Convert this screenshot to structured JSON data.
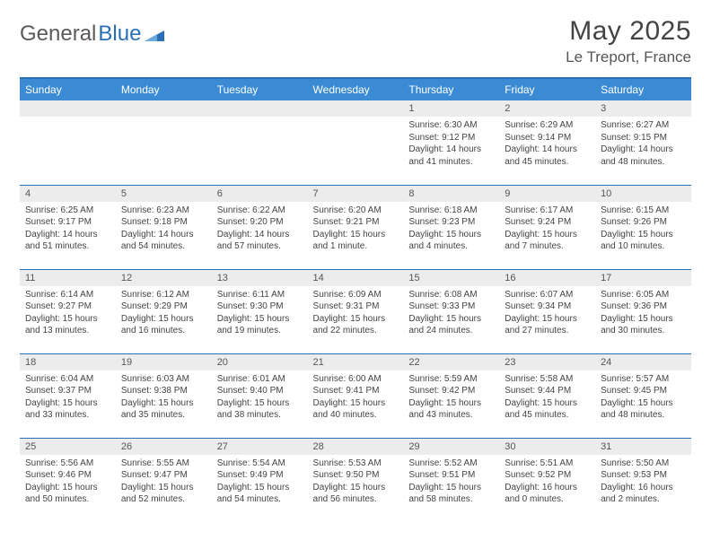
{
  "brand": {
    "word1": "General",
    "word2": "Blue"
  },
  "title": "May 2025",
  "location": "Le Treport, France",
  "colors": {
    "header_bg": "#3b8bd4",
    "header_text": "#ffffff",
    "border": "#2a6fb5",
    "daynum_bg": "#ececec",
    "body_text": "#444444",
    "logo_gray": "#5a5a5a",
    "logo_blue": "#2a6fb5",
    "page_bg": "#ffffff"
  },
  "typography": {
    "month_title_pt": 30,
    "location_pt": 17,
    "dow_pt": 12,
    "daynum_pt": 11,
    "body_pt": 10
  },
  "dow": [
    "Sunday",
    "Monday",
    "Tuesday",
    "Wednesday",
    "Thursday",
    "Friday",
    "Saturday"
  ],
  "weeks": [
    [
      null,
      null,
      null,
      null,
      {
        "n": "1",
        "sunrise": "6:30 AM",
        "sunset": "9:12 PM",
        "dl1": "Daylight: 14 hours",
        "dl2": "and 41 minutes."
      },
      {
        "n": "2",
        "sunrise": "6:29 AM",
        "sunset": "9:14 PM",
        "dl1": "Daylight: 14 hours",
        "dl2": "and 45 minutes."
      },
      {
        "n": "3",
        "sunrise": "6:27 AM",
        "sunset": "9:15 PM",
        "dl1": "Daylight: 14 hours",
        "dl2": "and 48 minutes."
      }
    ],
    [
      {
        "n": "4",
        "sunrise": "6:25 AM",
        "sunset": "9:17 PM",
        "dl1": "Daylight: 14 hours",
        "dl2": "and 51 minutes."
      },
      {
        "n": "5",
        "sunrise": "6:23 AM",
        "sunset": "9:18 PM",
        "dl1": "Daylight: 14 hours",
        "dl2": "and 54 minutes."
      },
      {
        "n": "6",
        "sunrise": "6:22 AM",
        "sunset": "9:20 PM",
        "dl1": "Daylight: 14 hours",
        "dl2": "and 57 minutes."
      },
      {
        "n": "7",
        "sunrise": "6:20 AM",
        "sunset": "9:21 PM",
        "dl1": "Daylight: 15 hours",
        "dl2": "and 1 minute."
      },
      {
        "n": "8",
        "sunrise": "6:18 AM",
        "sunset": "9:23 PM",
        "dl1": "Daylight: 15 hours",
        "dl2": "and 4 minutes."
      },
      {
        "n": "9",
        "sunrise": "6:17 AM",
        "sunset": "9:24 PM",
        "dl1": "Daylight: 15 hours",
        "dl2": "and 7 minutes."
      },
      {
        "n": "10",
        "sunrise": "6:15 AM",
        "sunset": "9:26 PM",
        "dl1": "Daylight: 15 hours",
        "dl2": "and 10 minutes."
      }
    ],
    [
      {
        "n": "11",
        "sunrise": "6:14 AM",
        "sunset": "9:27 PM",
        "dl1": "Daylight: 15 hours",
        "dl2": "and 13 minutes."
      },
      {
        "n": "12",
        "sunrise": "6:12 AM",
        "sunset": "9:29 PM",
        "dl1": "Daylight: 15 hours",
        "dl2": "and 16 minutes."
      },
      {
        "n": "13",
        "sunrise": "6:11 AM",
        "sunset": "9:30 PM",
        "dl1": "Daylight: 15 hours",
        "dl2": "and 19 minutes."
      },
      {
        "n": "14",
        "sunrise": "6:09 AM",
        "sunset": "9:31 PM",
        "dl1": "Daylight: 15 hours",
        "dl2": "and 22 minutes."
      },
      {
        "n": "15",
        "sunrise": "6:08 AM",
        "sunset": "9:33 PM",
        "dl1": "Daylight: 15 hours",
        "dl2": "and 24 minutes."
      },
      {
        "n": "16",
        "sunrise": "6:07 AM",
        "sunset": "9:34 PM",
        "dl1": "Daylight: 15 hours",
        "dl2": "and 27 minutes."
      },
      {
        "n": "17",
        "sunrise": "6:05 AM",
        "sunset": "9:36 PM",
        "dl1": "Daylight: 15 hours",
        "dl2": "and 30 minutes."
      }
    ],
    [
      {
        "n": "18",
        "sunrise": "6:04 AM",
        "sunset": "9:37 PM",
        "dl1": "Daylight: 15 hours",
        "dl2": "and 33 minutes."
      },
      {
        "n": "19",
        "sunrise": "6:03 AM",
        "sunset": "9:38 PM",
        "dl1": "Daylight: 15 hours",
        "dl2": "and 35 minutes."
      },
      {
        "n": "20",
        "sunrise": "6:01 AM",
        "sunset": "9:40 PM",
        "dl1": "Daylight: 15 hours",
        "dl2": "and 38 minutes."
      },
      {
        "n": "21",
        "sunrise": "6:00 AM",
        "sunset": "9:41 PM",
        "dl1": "Daylight: 15 hours",
        "dl2": "and 40 minutes."
      },
      {
        "n": "22",
        "sunrise": "5:59 AM",
        "sunset": "9:42 PM",
        "dl1": "Daylight: 15 hours",
        "dl2": "and 43 minutes."
      },
      {
        "n": "23",
        "sunrise": "5:58 AM",
        "sunset": "9:44 PM",
        "dl1": "Daylight: 15 hours",
        "dl2": "and 45 minutes."
      },
      {
        "n": "24",
        "sunrise": "5:57 AM",
        "sunset": "9:45 PM",
        "dl1": "Daylight: 15 hours",
        "dl2": "and 48 minutes."
      }
    ],
    [
      {
        "n": "25",
        "sunrise": "5:56 AM",
        "sunset": "9:46 PM",
        "dl1": "Daylight: 15 hours",
        "dl2": "and 50 minutes."
      },
      {
        "n": "26",
        "sunrise": "5:55 AM",
        "sunset": "9:47 PM",
        "dl1": "Daylight: 15 hours",
        "dl2": "and 52 minutes."
      },
      {
        "n": "27",
        "sunrise": "5:54 AM",
        "sunset": "9:49 PM",
        "dl1": "Daylight: 15 hours",
        "dl2": "and 54 minutes."
      },
      {
        "n": "28",
        "sunrise": "5:53 AM",
        "sunset": "9:50 PM",
        "dl1": "Daylight: 15 hours",
        "dl2": "and 56 minutes."
      },
      {
        "n": "29",
        "sunrise": "5:52 AM",
        "sunset": "9:51 PM",
        "dl1": "Daylight: 15 hours",
        "dl2": "and 58 minutes."
      },
      {
        "n": "30",
        "sunrise": "5:51 AM",
        "sunset": "9:52 PM",
        "dl1": "Daylight: 16 hours",
        "dl2": "and 0 minutes."
      },
      {
        "n": "31",
        "sunrise": "5:50 AM",
        "sunset": "9:53 PM",
        "dl1": "Daylight: 16 hours",
        "dl2": "and 2 minutes."
      }
    ]
  ],
  "labels": {
    "sunrise_prefix": "Sunrise: ",
    "sunset_prefix": "Sunset: "
  }
}
